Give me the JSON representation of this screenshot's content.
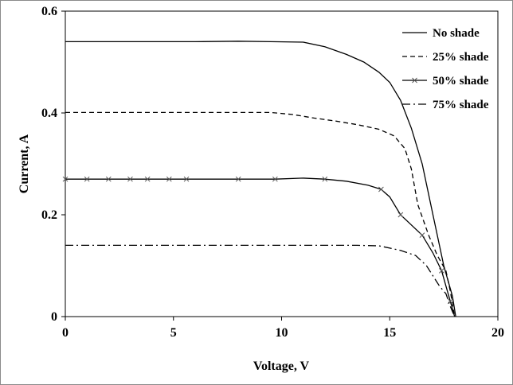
{
  "chart_data": {
    "type": "line",
    "title": "",
    "xlabel": "Voltage, V",
    "ylabel": "Current, A",
    "xlim": [
      0,
      20
    ],
    "ylim": [
      0,
      0.6
    ],
    "x_ticks": [
      "0",
      "5",
      "10",
      "15",
      "20"
    ],
    "y_ticks": [
      "0",
      "0.2",
      "0.4",
      "0.6"
    ],
    "grid": false,
    "legend_position": "top-right",
    "series": [
      {
        "name": "No shade",
        "line_style": "solid",
        "marker": "none",
        "color": "#000000",
        "points": [
          [
            0,
            0.54
          ],
          [
            2,
            0.54
          ],
          [
            4,
            0.54
          ],
          [
            6,
            0.54
          ],
          [
            8,
            0.541
          ],
          [
            9.5,
            0.54
          ],
          [
            11,
            0.539
          ],
          [
            12,
            0.53
          ],
          [
            13,
            0.515
          ],
          [
            13.8,
            0.5
          ],
          [
            14.5,
            0.48
          ],
          [
            15,
            0.46
          ],
          [
            15.5,
            0.425
          ],
          [
            16,
            0.37
          ],
          [
            16.5,
            0.3
          ],
          [
            17,
            0.2
          ],
          [
            17.5,
            0.1
          ],
          [
            17.9,
            0.04
          ],
          [
            18.05,
            0.0
          ]
        ]
      },
      {
        "name": "25%  shade",
        "line_style": "dashed",
        "marker": "none",
        "color": "#000000",
        "points": [
          [
            0,
            0.401
          ],
          [
            2,
            0.401
          ],
          [
            4,
            0.401
          ],
          [
            6,
            0.401
          ],
          [
            8,
            0.401
          ],
          [
            9.5,
            0.401
          ],
          [
            10.5,
            0.397
          ],
          [
            11.5,
            0.39
          ],
          [
            12.5,
            0.384
          ],
          [
            13.5,
            0.377
          ],
          [
            14.5,
            0.368
          ],
          [
            15.2,
            0.355
          ],
          [
            15.7,
            0.33
          ],
          [
            16,
            0.29
          ],
          [
            16.3,
            0.22
          ],
          [
            16.8,
            0.16
          ],
          [
            17.2,
            0.12
          ],
          [
            17.6,
            0.09
          ],
          [
            17.8,
            0.05
          ],
          [
            18.0,
            0.0
          ]
        ]
      },
      {
        "name": "50% shade",
        "line_style": "solid",
        "marker": "x",
        "color": "#000000",
        "points": [
          [
            0,
            0.27
          ],
          [
            1,
            0.27
          ],
          [
            2,
            0.27
          ],
          [
            3,
            0.27
          ],
          [
            3.8,
            0.27
          ],
          [
            4.8,
            0.27
          ],
          [
            5.6,
            0.27
          ],
          [
            8,
            0.27
          ],
          [
            9.7,
            0.27
          ],
          [
            11,
            0.272
          ],
          [
            12,
            0.27
          ],
          [
            13,
            0.266
          ],
          [
            14,
            0.258
          ],
          [
            14.6,
            0.25
          ],
          [
            15,
            0.235
          ],
          [
            15.5,
            0.2
          ],
          [
            16,
            0.18
          ],
          [
            16.5,
            0.16
          ],
          [
            17,
            0.125
          ],
          [
            17.4,
            0.09
          ],
          [
            17.6,
            0.06
          ],
          [
            17.8,
            0.03
          ],
          [
            18.0,
            0.0
          ]
        ],
        "marker_x": [
          0,
          1,
          2,
          3,
          3.8,
          4.8,
          5.6,
          8,
          9.7,
          12,
          14.6,
          15.5,
          16.5,
          17.4,
          17.8
        ]
      },
      {
        "name": "75% shade",
        "line_style": "dash-dot",
        "marker": "none",
        "color": "#000000",
        "points": [
          [
            0,
            0.14
          ],
          [
            2,
            0.14
          ],
          [
            4,
            0.14
          ],
          [
            6,
            0.14
          ],
          [
            8,
            0.14
          ],
          [
            10,
            0.14
          ],
          [
            12,
            0.14
          ],
          [
            13.5,
            0.14
          ],
          [
            14.5,
            0.139
          ],
          [
            15.5,
            0.13
          ],
          [
            16.2,
            0.12
          ],
          [
            16.7,
            0.1
          ],
          [
            17,
            0.08
          ],
          [
            17.3,
            0.06
          ],
          [
            17.6,
            0.045
          ],
          [
            17.8,
            0.02
          ],
          [
            18.0,
            0.0
          ]
        ]
      }
    ]
  }
}
